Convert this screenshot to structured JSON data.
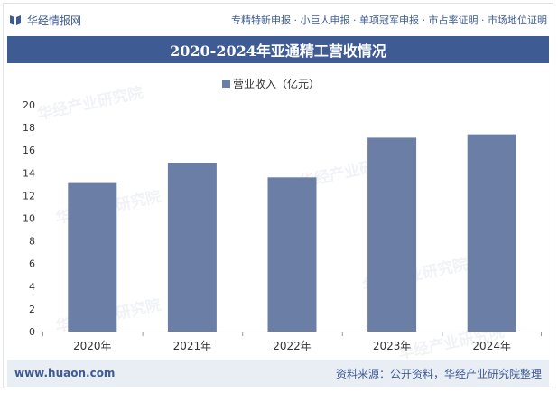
{
  "header": {
    "brand_name": "华经情报网",
    "tagline": "专精特新申报 · 小巨人申报 · 单项冠军申报 · 市占率证明 · 市场地位证明"
  },
  "watermark": "华经产业研究院",
  "footer": {
    "url": "www.huaon.com",
    "source": "资料来源：公开资料，华经产业研究院整理"
  },
  "colors": {
    "brand": "#3e5b93",
    "bar": "#6b7ea6"
  },
  "chart_data": {
    "type": "bar",
    "title": "2020-2024年亚通精工营收情况",
    "legend": "营业收入（亿元）",
    "legend_position": "top-center",
    "categories": [
      "2020年",
      "2021年",
      "2022年",
      "2023年",
      "2024年"
    ],
    "series": [
      {
        "name": "营业收入（亿元）",
        "values": [
          13.1,
          14.9,
          13.6,
          17.1,
          17.4
        ]
      }
    ],
    "ylim": [
      0,
      20
    ],
    "yticks": [
      0,
      2,
      4,
      6,
      8,
      10,
      12,
      14,
      16,
      18,
      20
    ],
    "xlabel": "",
    "ylabel": "",
    "grid": false
  }
}
